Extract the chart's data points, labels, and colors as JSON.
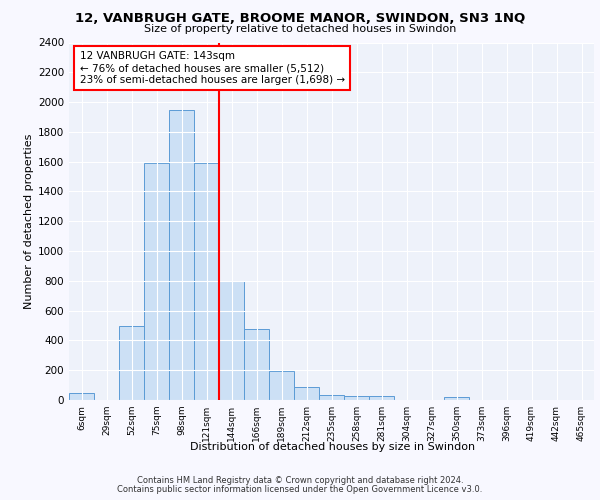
{
  "title1": "12, VANBRUGH GATE, BROOME MANOR, SWINDON, SN3 1NQ",
  "title2": "Size of property relative to detached houses in Swindon",
  "xlabel": "Distribution of detached houses by size in Swindon",
  "ylabel": "Number of detached properties",
  "annotation_line1": "12 VANBRUGH GATE: 143sqm",
  "annotation_line2": "← 76% of detached houses are smaller (5,512)",
  "annotation_line3": "23% of semi-detached houses are larger (1,698) →",
  "bar_labels": [
    "6sqm",
    "29sqm",
    "52sqm",
    "75sqm",
    "98sqm",
    "121sqm",
    "144sqm",
    "166sqm",
    "189sqm",
    "212sqm",
    "235sqm",
    "258sqm",
    "281sqm",
    "304sqm",
    "327sqm",
    "350sqm",
    "373sqm",
    "396sqm",
    "419sqm",
    "442sqm",
    "465sqm"
  ],
  "bar_values": [
    50,
    0,
    500,
    1590,
    1950,
    1590,
    800,
    480,
    195,
    90,
    35,
    30,
    25,
    0,
    0,
    20,
    0,
    0,
    0,
    0,
    0
  ],
  "bar_color": "#cce0f5",
  "bar_edge_color": "#5b9bd5",
  "red_line_bar_index": 6,
  "ylim": [
    0,
    2400
  ],
  "yticks": [
    0,
    200,
    400,
    600,
    800,
    1000,
    1200,
    1400,
    1600,
    1800,
    2000,
    2200,
    2400
  ],
  "fig_bg_color": "#f8f8ff",
  "axes_bg_color": "#eef2fa",
  "grid_color": "#ffffff",
  "footer1": "Contains HM Land Registry data © Crown copyright and database right 2024.",
  "footer2": "Contains public sector information licensed under the Open Government Licence v3.0."
}
